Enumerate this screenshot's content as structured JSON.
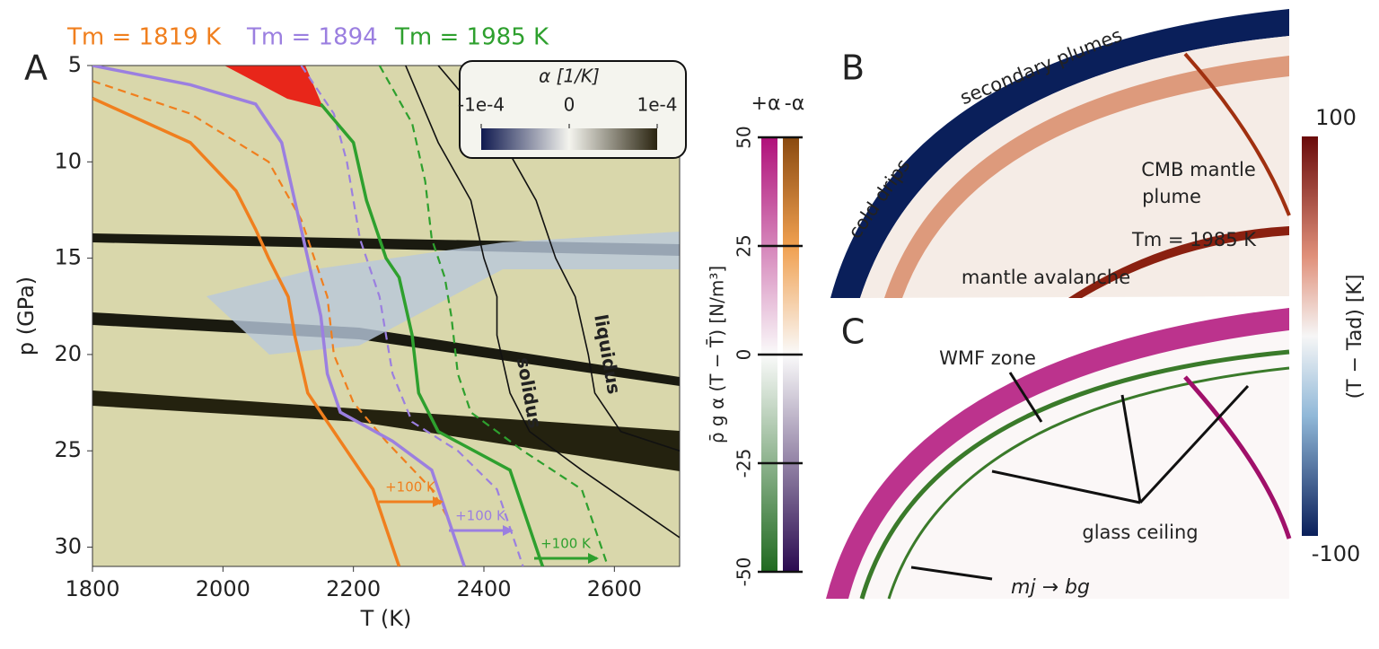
{
  "chart_data": {
    "type": "line",
    "panel_label": "A",
    "x_label": "T (K)",
    "y_label": "p (GPa)",
    "xlim": [
      1800,
      2700
    ],
    "ylim": [
      31,
      5
    ],
    "xticks": [
      1800,
      2000,
      2200,
      2400,
      2600
    ],
    "yticks": [
      5,
      10,
      15,
      20,
      25,
      30
    ],
    "series": [
      {
        "name": "Tm = 1819 K",
        "color": "#f07f1e",
        "dash": false,
        "x": [
          1800,
          1950,
          2020,
          2050,
          2070,
          2100,
          2110,
          2130,
          2170,
          2230,
          2270
        ],
        "values": [
          6.7,
          9,
          11.5,
          13.5,
          15,
          17,
          19,
          22,
          24,
          27,
          31
        ]
      },
      {
        "color": "#f07f1e",
        "dash": true,
        "x": [
          1800,
          1950,
          2070,
          2120,
          2140,
          2160,
          2170,
          2200,
          2250,
          2320,
          2345
        ],
        "values": [
          5.8,
          7.5,
          10,
          13,
          15,
          17,
          20,
          22.5,
          24.5,
          27,
          28.5
        ]
      },
      {
        "name": "Tm = 1894",
        "color": "#9b7fe0",
        "dash": false,
        "x": [
          1800,
          1950,
          2050,
          2090,
          2110,
          2130,
          2150,
          2160,
          2180,
          2260,
          2320,
          2370
        ],
        "values": [
          5,
          6,
          7,
          9,
          12,
          15,
          18,
          21,
          23,
          24.5,
          26,
          31
        ]
      },
      {
        "color": "#9b7fe0",
        "dash": true,
        "x": [
          2120,
          2170,
          2190,
          2210,
          2240,
          2260,
          2290,
          2360,
          2420,
          2460
        ],
        "values": [
          5,
          7.5,
          10,
          14,
          17,
          21,
          23.5,
          25,
          27,
          31
        ]
      },
      {
        "name": "Tm = 1985 K",
        "color": "#2ea02e",
        "dash": false,
        "x": [
          2150,
          2200,
          2220,
          2250,
          2270,
          2290,
          2300,
          2330,
          2440,
          2490
        ],
        "values": [
          7,
          9,
          12,
          15,
          16,
          19,
          22,
          24,
          26,
          31
        ]
      },
      {
        "color": "#2ea02e",
        "dash": true,
        "x": [
          2240,
          2290,
          2310,
          2320,
          2340,
          2350,
          2360,
          2380,
          2460,
          2550,
          2590
        ],
        "values": [
          5,
          8,
          11,
          14,
          16,
          18,
          21,
          23,
          25,
          27,
          31
        ]
      },
      {
        "name": "solidus",
        "color": "#111111",
        "dash": false,
        "thin": true,
        "x": [
          2280,
          2330,
          2380,
          2400,
          2420,
          2420,
          2440,
          2470,
          2550,
          2700
        ],
        "values": [
          5,
          9,
          12,
          15,
          17,
          19,
          22,
          24,
          26,
          29.5
        ]
      },
      {
        "name": "liquidus",
        "color": "#111111",
        "dash": false,
        "thin": true,
        "x": [
          2330,
          2430,
          2480,
          2510,
          2540,
          2560,
          2570,
          2610,
          2700
        ],
        "values": [
          5,
          9,
          12,
          15,
          17,
          20,
          22,
          24,
          25
        ]
      }
    ],
    "annotations": [
      "+100 K",
      "+100 K",
      "+100 K"
    ],
    "alpha_colorbar": {
      "title": "α [1/K]",
      "ticks": [
        {
          "value": -0.0001,
          "label": "-1e-4"
        },
        0,
        {
          "value": 0.0001,
          "label": "1e-4"
        }
      ]
    },
    "buoyancy_colorbar": {
      "label": "ρ̄ g α (T − T̄) [N/m³]",
      "columns": [
        "+α",
        "-α"
      ],
      "lim": [
        -50,
        50
      ],
      "ticks": [
        50,
        25,
        0,
        -25,
        -50
      ]
    }
  },
  "panels": {
    "b": {
      "label": "B",
      "texts": [
        "secondary plumes",
        "cold drips",
        "CMB mantle",
        "plume",
        "Tm = 1985 K",
        "mantle avalanche"
      ],
      "colorbar": {
        "label": "(T − Tad) [K]",
        "ticks": [
          100,
          -100
        ]
      }
    },
    "c": {
      "label": "C",
      "texts": [
        "WMF zone",
        "glass ceiling",
        "mj → bg"
      ]
    }
  }
}
